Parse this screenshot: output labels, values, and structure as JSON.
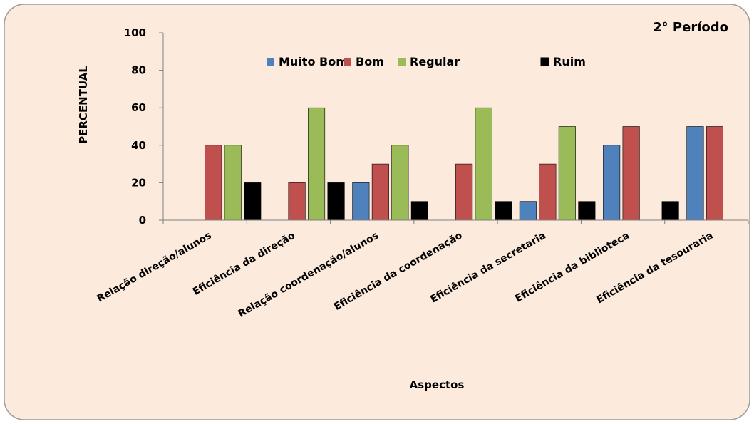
{
  "chart_data": {
    "type": "bar",
    "title": "2° Período",
    "xlabel": "Aspectos",
    "ylabel": "PERCENTUAL",
    "ylim": [
      0,
      100
    ],
    "yticks": [
      0,
      20,
      40,
      60,
      80,
      100
    ],
    "grid": false,
    "legend_position": "top",
    "categories": [
      "Relação direção/alunos",
      "Eficiência da direção",
      "Relação coordenação/alunos",
      "Eficiência da coordenação",
      "Eficiência da secretaria",
      "Eficiência da biblioteca",
      "Eficiência da tesouraria"
    ],
    "series": [
      {
        "name": "Muito Bom",
        "color": "#4F81BD",
        "values": [
          0,
          0,
          20,
          0,
          10,
          40,
          50
        ]
      },
      {
        "name": "Bom",
        "color": "#C0504D",
        "values": [
          40,
          20,
          30,
          30,
          30,
          50,
          50
        ]
      },
      {
        "name": "Regular",
        "color": "#9BBB59",
        "values": [
          40,
          60,
          40,
          60,
          50,
          0,
          0
        ]
      },
      {
        "name": "Ruim",
        "color": "#000000",
        "values": [
          20,
          20,
          10,
          10,
          10,
          10,
          0
        ]
      }
    ]
  },
  "colors": {
    "background": "#FCEBDC",
    "border": "#9B9B9B"
  }
}
